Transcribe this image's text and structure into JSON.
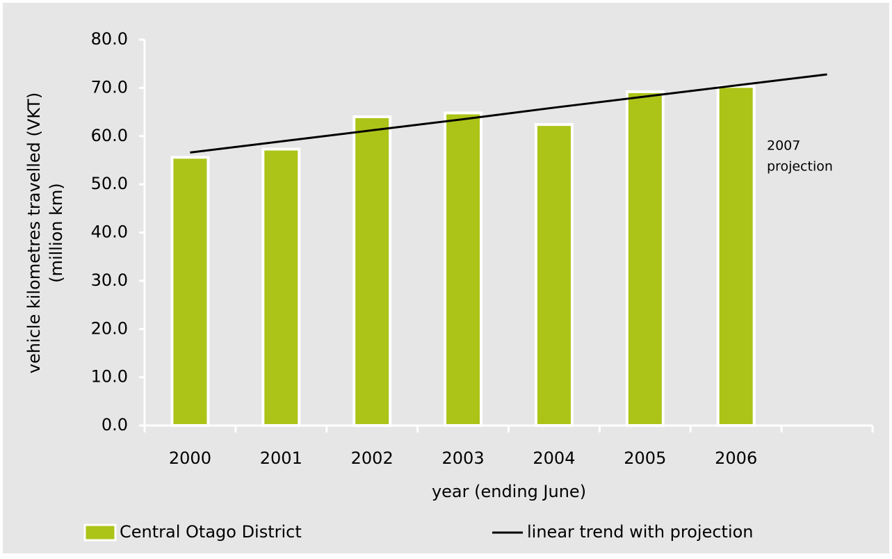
{
  "chart_data": {
    "type": "bar",
    "categories": [
      "2000",
      "2001",
      "2002",
      "2003",
      "2004",
      "2005",
      "2006",
      null
    ],
    "series": [
      {
        "name": "Central Otago District",
        "type": "bar",
        "color": "#acc418",
        "values": [
          55.6,
          57.3,
          64.0,
          64.8,
          62.4,
          69.2,
          70.3,
          null
        ]
      },
      {
        "name": "linear trend with projection",
        "type": "line",
        "color": "#000000",
        "values": [
          56.6,
          58.9,
          61.2,
          63.5,
          65.9,
          68.2,
          70.5,
          72.8
        ]
      }
    ],
    "ylim": [
      0,
      80
    ],
    "yticks": [
      {
        "value": 0,
        "label": "0.0"
      },
      {
        "value": 10,
        "label": "10.0"
      },
      {
        "value": 20,
        "label": "20.0"
      },
      {
        "value": 30,
        "label": "30.0"
      },
      {
        "value": 40,
        "label": "40.0"
      },
      {
        "value": 50,
        "label": "50.0"
      },
      {
        "value": 60,
        "label": "60.0"
      },
      {
        "value": 70,
        "label": "70.0"
      },
      {
        "value": 80,
        "label": "80.0"
      }
    ],
    "ylabel": [
      "vehicle kilometres travelled (VKT)",
      "(million km)"
    ],
    "xlabel": "year (ending June)",
    "annotation": [
      "2007",
      "projection"
    ],
    "legend": "bottom"
  }
}
